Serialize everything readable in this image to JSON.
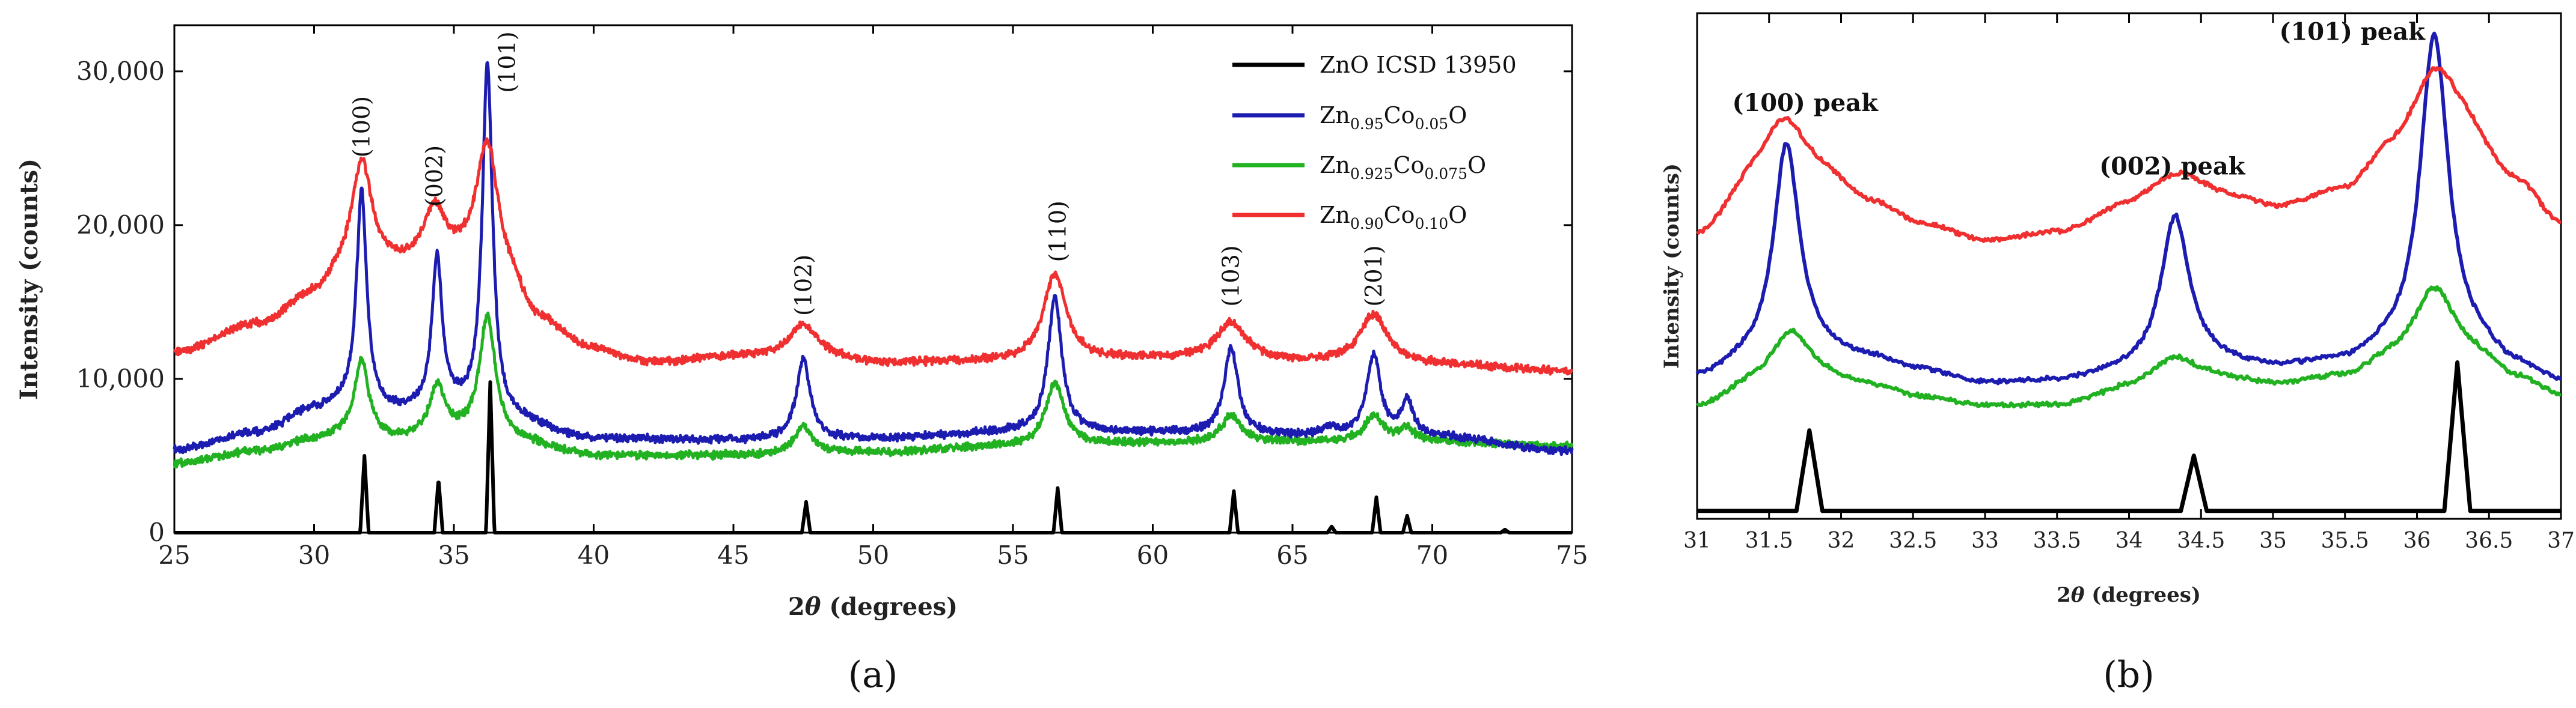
{
  "colors": {
    "ZnO_ICSD": "#000000",
    "x005": "#1c1cb0",
    "x0075": "#21b121",
    "x010": "#f03030"
  },
  "chart_data": [
    {
      "panel": "a",
      "type": "line",
      "caption": "(a)",
      "xlabel_prefix": "2",
      "xlabel_theta": "θ",
      "xlabel_suffix": " (degrees)",
      "ylabel": "Intensity (counts)",
      "xlim": [
        25,
        75
      ],
      "ylim": [
        0,
        33000
      ],
      "xticks": [
        25,
        30,
        35,
        40,
        45,
        50,
        55,
        60,
        65,
        70,
        75
      ],
      "xtick_labels": [
        "25",
        "30",
        "35",
        "40",
        "45",
        "50",
        "55",
        "60",
        "65",
        "70",
        "75"
      ],
      "yticks": [
        0,
        10000,
        20000,
        30000
      ],
      "ytick_labels": [
        "0",
        "10,000",
        "20,000",
        "30,000"
      ],
      "legend": [
        {
          "id": "ZnO_ICSD",
          "label": "ZnO ICSD 13950"
        },
        {
          "id": "x005",
          "pre": "Zn",
          "sub1": "0.95",
          "mid": "Co",
          "sub2": "0.05",
          "post": "O"
        },
        {
          "id": "x0075",
          "pre": "Zn",
          "sub1": "0.925",
          "mid": "Co",
          "sub2": "0.075",
          "post": "O"
        },
        {
          "id": "x010",
          "pre": "Zn",
          "sub1": "0.90",
          "mid": "Co",
          "sub2": "0.10",
          "post": "O"
        }
      ],
      "legend_position": "top-right",
      "peak_labels": [
        {
          "text": "(100)",
          "x": 31.7,
          "y": 24400
        },
        {
          "text": "(002)",
          "x": 34.3,
          "y": 21200
        },
        {
          "text": "(101)",
          "x": 36.9,
          "y": 28600
        },
        {
          "text": "(102)",
          "x": 47.5,
          "y": 14100
        },
        {
          "text": "(110)",
          "x": 56.6,
          "y": 17600
        },
        {
          "text": "(103)",
          "x": 62.8,
          "y": 14700
        },
        {
          "text": "(201)",
          "x": 67.9,
          "y": 14700
        }
      ],
      "series": [
        {
          "id": "ZnO_ICSD",
          "name": "ZnO ICSD 13950",
          "baseline": [
            [
              25,
              0
            ],
            [
              75,
              0
            ]
          ],
          "peaks": [
            [
              31.8,
              5000,
              0.15
            ],
            [
              34.45,
              3500,
              0.15
            ],
            [
              36.3,
              9800,
              0.15
            ],
            [
              47.6,
              2000,
              0.15
            ],
            [
              56.6,
              2900,
              0.15
            ],
            [
              62.9,
              2700,
              0.15
            ],
            [
              66.4,
              400,
              0.15
            ],
            [
              68.0,
              2300,
              0.15
            ],
            [
              69.1,
              1100,
              0.15
            ],
            [
              72.6,
              200,
              0.15
            ]
          ]
        },
        {
          "id": "x005",
          "name": "Zn0.95Co0.05O",
          "baseline": [
            [
              25,
              5400
            ],
            [
              28,
              6500
            ],
            [
              30,
              8000
            ],
            [
              31,
              8300
            ],
            [
              33,
              7800
            ],
            [
              35,
              8000
            ],
            [
              37,
              7200
            ],
            [
              40,
              6100
            ],
            [
              45,
              6000
            ],
            [
              50,
              6100
            ],
            [
              55,
              6500
            ],
            [
              60,
              6500
            ],
            [
              65,
              6300
            ],
            [
              70,
              6200
            ],
            [
              75,
              5300
            ]
          ],
          "peaks": [
            [
              31.7,
              14000,
              0.22
            ],
            [
              34.4,
              9800,
              0.22
            ],
            [
              36.2,
              23000,
              0.22
            ],
            [
              47.5,
              5200,
              0.3
            ],
            [
              56.5,
              8800,
              0.3
            ],
            [
              62.8,
              5600,
              0.3
            ],
            [
              66.3,
              500,
              0.3
            ],
            [
              67.9,
              5300,
              0.3
            ],
            [
              69.1,
              2300,
              0.25
            ]
          ]
        },
        {
          "id": "x0075",
          "name": "Zn0.925Co0.075O",
          "baseline": [
            [
              25,
              4500
            ],
            [
              28,
              5300
            ],
            [
              30,
              6000
            ],
            [
              31,
              6300
            ],
            [
              33,
              6000
            ],
            [
              35,
              6200
            ],
            [
              37,
              5900
            ],
            [
              40,
              5000
            ],
            [
              45,
              5000
            ],
            [
              50,
              5200
            ],
            [
              55,
              5600
            ],
            [
              60,
              5800
            ],
            [
              65,
              5900
            ],
            [
              70,
              5900
            ],
            [
              75,
              5600
            ]
          ],
          "peaks": [
            [
              31.7,
              5000,
              0.3
            ],
            [
              34.4,
              3200,
              0.35
            ],
            [
              36.2,
              8000,
              0.35
            ],
            [
              47.5,
              1800,
              0.4
            ],
            [
              56.5,
              4100,
              0.4
            ],
            [
              62.8,
              1800,
              0.4
            ],
            [
              67.9,
              1700,
              0.4
            ],
            [
              69.1,
              800,
              0.35
            ]
          ]
        },
        {
          "id": "x010",
          "name": "Zn0.90Co0.10O",
          "baseline": [
            [
              25,
              11700
            ],
            [
              28,
              13500
            ],
            [
              30,
              15300
            ],
            [
              31,
              16500
            ],
            [
              33,
              17000
            ],
            [
              35,
              17000
            ],
            [
              37,
              15500
            ],
            [
              38,
              13500
            ],
            [
              40,
              11800
            ],
            [
              42,
              11000
            ],
            [
              45,
              11400
            ],
            [
              48,
              11400
            ],
            [
              50,
              11000
            ],
            [
              55,
              11100
            ],
            [
              60,
              11300
            ],
            [
              63,
              11400
            ],
            [
              65,
              11100
            ],
            [
              70,
              10900
            ],
            [
              75,
              10500
            ]
          ],
          "peaks": [
            [
              31.7,
              7400,
              0.45
            ],
            [
              34.3,
              3700,
              0.5
            ],
            [
              36.2,
              9200,
              0.5
            ],
            [
              47.5,
              2100,
              0.6
            ],
            [
              56.5,
              5600,
              0.5
            ],
            [
              62.8,
              2200,
              0.6
            ],
            [
              67.9,
              3200,
              0.6
            ]
          ]
        }
      ]
    },
    {
      "panel": "b",
      "type": "line",
      "caption": "(b)",
      "xlabel_prefix": "2",
      "xlabel_theta": "θ",
      "xlabel_suffix": " (degrees)",
      "ylabel": "Intensity (counts)",
      "xlim": [
        31,
        37
      ],
      "ylim": [
        0,
        32000
      ],
      "xticks": [
        31,
        31.5,
        32,
        32.5,
        33,
        33.5,
        34,
        34.5,
        35,
        35.5,
        36,
        36.5,
        37
      ],
      "xtick_labels": [
        "31",
        "31.5",
        "32",
        "32.5",
        "33",
        "33.5",
        "34",
        "34.5",
        "35",
        "35.5",
        "36",
        "36.5",
        "37"
      ],
      "peak_labels": [
        {
          "text": "(100) peak",
          "x": 31.75,
          "y": 25800
        },
        {
          "text": "(002) peak",
          "x": 34.3,
          "y": 21800
        },
        {
          "text": "(101) peak",
          "x": 35.55,
          "y": 30300
        }
      ],
      "series": [
        {
          "id": "ZnO_ICSD",
          "name": "ZnO ICSD 13950",
          "baseline": [
            [
              31,
              500
            ],
            [
              37,
              500
            ]
          ],
          "peaks": [
            [
              31.78,
              5100,
              0.09
            ],
            [
              34.45,
              3500,
              0.09
            ],
            [
              36.28,
              9400,
              0.09
            ]
          ]
        },
        {
          "id": "x005",
          "name": "Zn0.95Co0.05O",
          "baseline": [
            [
              31,
              8800
            ],
            [
              31.4,
              9800
            ],
            [
              31.8,
              10300
            ],
            [
              32.2,
              10000
            ],
            [
              32.5,
              9400
            ],
            [
              33,
              8500
            ],
            [
              33.5,
              8600
            ],
            [
              34,
              9200
            ],
            [
              34.6,
              9700
            ],
            [
              35,
              9400
            ],
            [
              35.5,
              9600
            ],
            [
              35.8,
              10200
            ],
            [
              36.4,
              10300
            ],
            [
              36.7,
              9300
            ],
            [
              37,
              8500
            ]
          ],
          "peaks": [
            [
              31.62,
              13600,
              0.11
            ],
            [
              34.32,
              9600,
              0.12
            ],
            [
              36.12,
              20300,
              0.12
            ]
          ]
        },
        {
          "id": "x0075",
          "name": "Zn0.925Co0.075O",
          "baseline": [
            [
              31,
              7000
            ],
            [
              31.4,
              8300
            ],
            [
              31.8,
              8700
            ],
            [
              32.2,
              8300
            ],
            [
              32.6,
              7600
            ],
            [
              33,
              7100
            ],
            [
              33.5,
              7100
            ],
            [
              34,
              8000
            ],
            [
              34.6,
              8700
            ],
            [
              35,
              8400
            ],
            [
              35.5,
              8800
            ],
            [
              35.8,
              9600
            ],
            [
              36.4,
              9800
            ],
            [
              36.7,
              8700
            ],
            [
              37,
              7700
            ]
          ],
          "peaks": [
            [
              31.65,
              3300,
              0.17
            ],
            [
              34.3,
              1800,
              0.2
            ],
            [
              36.12,
              4900,
              0.18
            ]
          ]
        },
        {
          "id": "x010",
          "name": "Zn0.90Co0.10O",
          "baseline": [
            [
              31,
              17600
            ],
            [
              31.4,
              20500
            ],
            [
              31.6,
              21200
            ],
            [
              31.9,
              21000
            ],
            [
              32.2,
              19700
            ],
            [
              32.6,
              18400
            ],
            [
              33,
              17500
            ],
            [
              33.5,
              18000
            ],
            [
              34,
              19500
            ],
            [
              34.4,
              20500
            ],
            [
              34.8,
              20000
            ],
            [
              35,
              19500
            ],
            [
              35.5,
              20500
            ],
            [
              35.8,
              22500
            ],
            [
              36.3,
              24000
            ],
            [
              36.7,
              21000
            ],
            [
              37,
              18500
            ]
          ],
          "peaks": [
            [
              31.6,
              4100,
              0.22
            ],
            [
              34.3,
              1400,
              0.25
            ],
            [
              36.12,
              4900,
              0.2
            ]
          ]
        }
      ]
    }
  ]
}
